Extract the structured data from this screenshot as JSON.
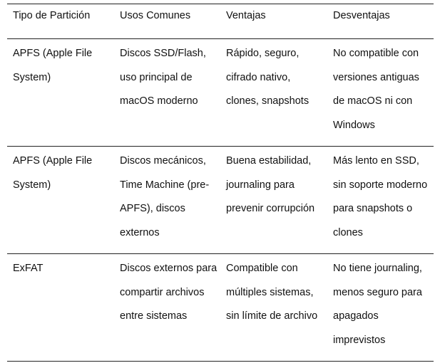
{
  "table": {
    "headers": [
      "Tipo de Partición",
      "Usos Comunes",
      "Ventajas",
      "Desventajas"
    ],
    "rows": [
      [
        "APFS (Apple File System)",
        "Discos SSD/Flash, uso principal de macOS moderno",
        "Rápido, seguro, cifrado nativo, clones, snapshots",
        "No compatible con versiones antiguas de macOS ni con Windows"
      ],
      [
        "APFS (Apple File System)",
        "Discos mecánicos, Time Machine (pre-APFS), discos externos",
        "Buena estabilidad, journaling para prevenir corrupción",
        "Más lento en SSD, sin soporte moderno para snapshots o clones"
      ],
      [
        "ExFAT",
        "Discos externos para compartir archivos entre sistemas",
        "Compatible con múltiples sistemas, sin límite de archivo",
        "No tiene journaling, menos seguro para apagados imprevistos"
      ]
    ]
  }
}
